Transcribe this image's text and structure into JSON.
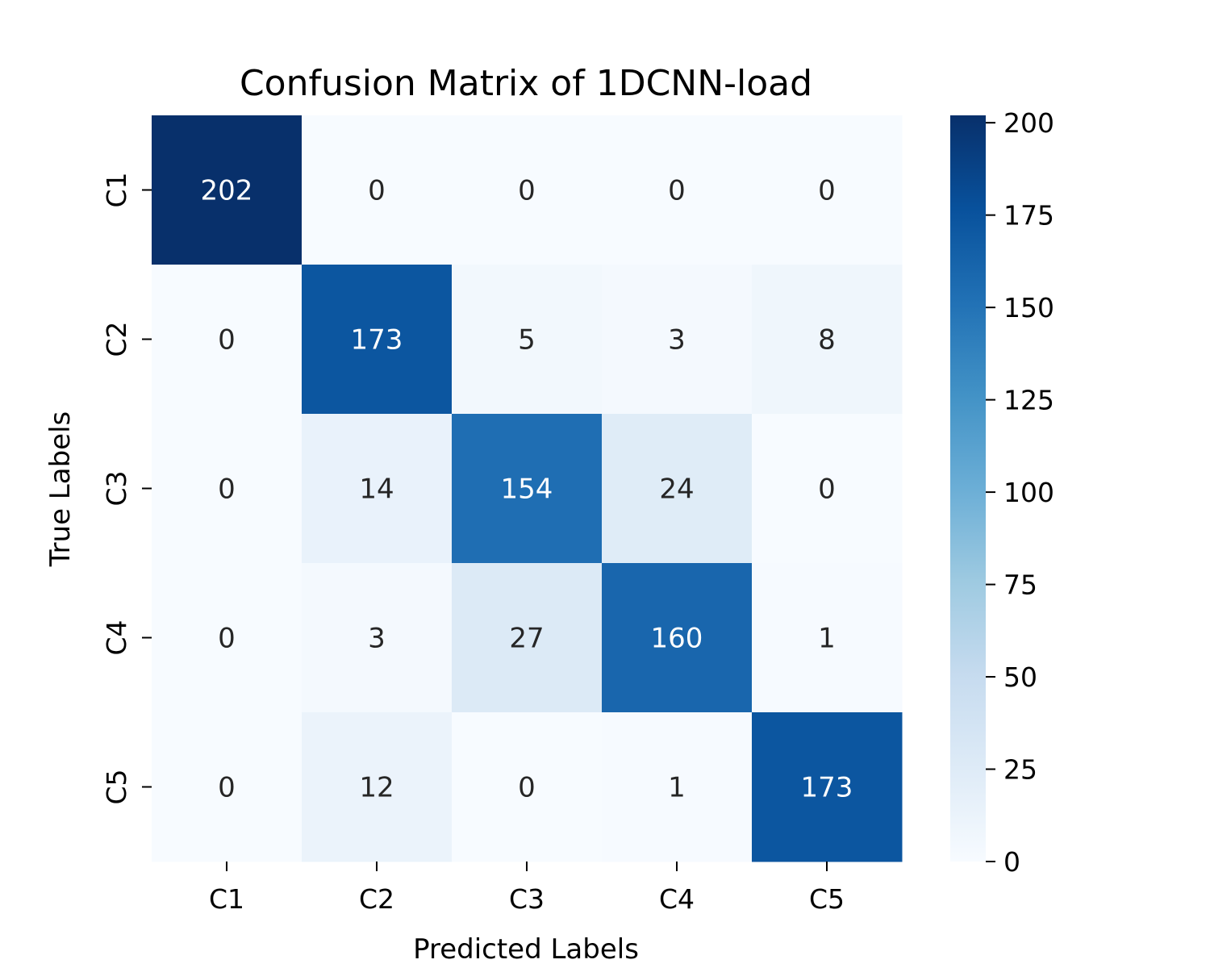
{
  "chart_data": {
    "type": "heatmap",
    "title": "Confusion Matrix of 1DCNN-load",
    "xlabel": "Predicted Labels",
    "ylabel": "True Labels",
    "x_categories": [
      "C1",
      "C2",
      "C3",
      "C4",
      "C5"
    ],
    "y_categories": [
      "C1",
      "C2",
      "C3",
      "C4",
      "C5"
    ],
    "matrix": [
      [
        202,
        0,
        0,
        0,
        0
      ],
      [
        0,
        173,
        5,
        3,
        8
      ],
      [
        0,
        14,
        154,
        24,
        0
      ],
      [
        0,
        3,
        27,
        160,
        1
      ],
      [
        0,
        12,
        0,
        1,
        173
      ]
    ],
    "colormap": "Blues",
    "colormap_light": "#f7fbff",
    "colormap_dark": "#08306b",
    "colorbar": {
      "range": [
        0,
        202
      ],
      "ticks": [
        0,
        25,
        50,
        75,
        100,
        125,
        150,
        175,
        200
      ]
    }
  }
}
